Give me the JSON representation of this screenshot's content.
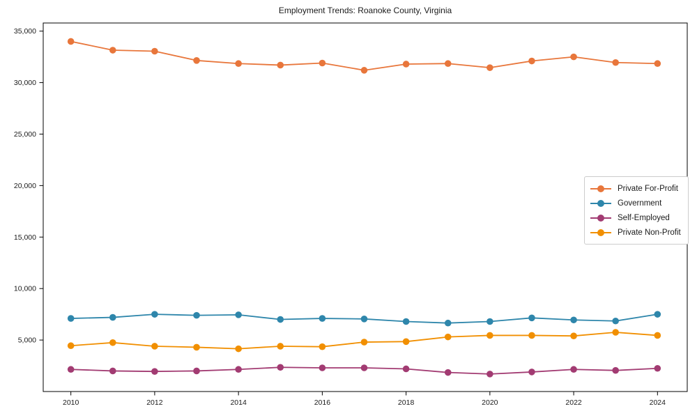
{
  "figure": {
    "background": "#ffffff"
  },
  "chart_data": {
    "type": "line",
    "title": "Employment Trends: Roanoke County, Virginia",
    "xlabel": "",
    "ylabel": "",
    "grid": false,
    "legend_position": "center-right",
    "x": [
      2010,
      2011,
      2012,
      2013,
      2014,
      2015,
      2016,
      2017,
      2018,
      2019,
      2020,
      2021,
      2022,
      2023,
      2024
    ],
    "xticks": [
      2010,
      2012,
      2014,
      2016,
      2018,
      2020,
      2022,
      2024
    ],
    "yticks": [
      5000,
      10000,
      15000,
      20000,
      25000,
      30000,
      35000
    ],
    "ytick_labels": [
      "5,000",
      "10,000",
      "15,000",
      "20,000",
      "25,000",
      "30,000",
      "35,000"
    ],
    "xlim": [
      2009.34,
      2024.71
    ],
    "ylim": [
      0,
      35790
    ],
    "series": [
      {
        "name": "Private For-Profit",
        "color": "#E8763B",
        "values": [
          34000,
          33150,
          33050,
          32150,
          31850,
          31700,
          31900,
          31200,
          31800,
          31850,
          31450,
          32100,
          32500,
          31950,
          31850
        ]
      },
      {
        "name": "Government",
        "color": "#2E86AB",
        "values": [
          7100,
          7200,
          7500,
          7400,
          7450,
          7000,
          7100,
          7050,
          6800,
          6650,
          6800,
          7150,
          6950,
          6850,
          7500
        ]
      },
      {
        "name": "Self-Employed",
        "color": "#A23B72",
        "values": [
          2150,
          2000,
          1950,
          2000,
          2150,
          2350,
          2300,
          2300,
          2200,
          1850,
          1700,
          1900,
          2150,
          2050,
          2250
        ]
      },
      {
        "name": "Private Non-Profit",
        "color": "#F18F01",
        "values": [
          4450,
          4750,
          4400,
          4300,
          4150,
          4400,
          4350,
          4800,
          4850,
          5300,
          5450,
          5450,
          5400,
          5750,
          5450
        ]
      }
    ]
  }
}
